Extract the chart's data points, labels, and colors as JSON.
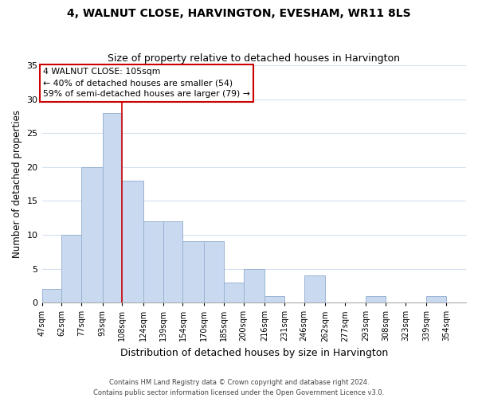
{
  "title": "4, WALNUT CLOSE, HARVINGTON, EVESHAM, WR11 8LS",
  "subtitle": "Size of property relative to detached houses in Harvington",
  "xlabel": "Distribution of detached houses by size in Harvington",
  "ylabel": "Number of detached properties",
  "bar_left_edges": [
    47,
    62,
    77,
    93,
    108,
    124,
    139,
    154,
    170,
    185,
    200,
    216,
    231,
    246,
    262,
    277,
    293,
    308,
    323,
    339
  ],
  "bar_widths": [
    15,
    15,
    16,
    15,
    16,
    15,
    15,
    16,
    15,
    15,
    16,
    15,
    15,
    16,
    15,
    16,
    15,
    15,
    16,
    15
  ],
  "bar_heights": [
    2,
    10,
    20,
    28,
    18,
    12,
    12,
    9,
    9,
    3,
    5,
    1,
    0,
    4,
    0,
    0,
    1,
    0,
    0,
    1
  ],
  "bar_color": "#c8d9f0",
  "bar_edge_color": "#9ab4d2",
  "highlight_x": 108,
  "highlight_color": "#cc0000",
  "xlim": [
    47,
    369
  ],
  "ylim": [
    0,
    35
  ],
  "yticks": [
    0,
    5,
    10,
    15,
    20,
    25,
    30,
    35
  ],
  "xtick_labels": [
    "47sqm",
    "62sqm",
    "77sqm",
    "93sqm",
    "108sqm",
    "124sqm",
    "139sqm",
    "154sqm",
    "170sqm",
    "185sqm",
    "200sqm",
    "216sqm",
    "231sqm",
    "246sqm",
    "262sqm",
    "277sqm",
    "293sqm",
    "308sqm",
    "323sqm",
    "339sqm",
    "354sqm"
  ],
  "xtick_positions": [
    47,
    62,
    77,
    93,
    108,
    124,
    139,
    154,
    170,
    185,
    200,
    216,
    231,
    246,
    262,
    277,
    293,
    308,
    323,
    339,
    354
  ],
  "annotation_line1": "4 WALNUT CLOSE: 105sqm",
  "annotation_line2": "← 40% of detached houses are smaller (54)",
  "annotation_line3": "59% of semi-detached houses are larger (79) →",
  "footer_line1": "Contains HM Land Registry data © Crown copyright and database right 2024.",
  "footer_line2": "Contains public sector information licensed under the Open Government Licence v3.0.",
  "bg_color": "#ffffff",
  "grid_color": "#d4dff0",
  "title_fontsize": 10,
  "subtitle_fontsize": 9
}
